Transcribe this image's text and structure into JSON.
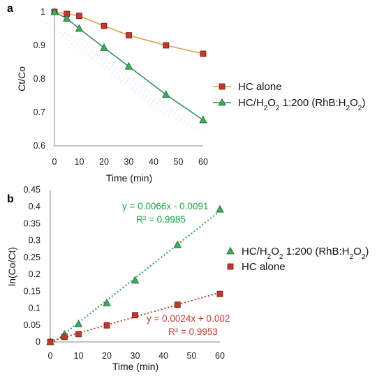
{
  "colors": {
    "hc_line": "#E09A45",
    "hc_marker": "#C0392B",
    "h2o2_line": "#2E8B57",
    "h2o2_marker": "#3AAE5A",
    "fit_green": "#1FA34A",
    "fit_red": "#C0392B",
    "axis": "#888888"
  },
  "chart_data": [
    {
      "panel": "a",
      "type": "line",
      "xlabel": "Time (min)",
      "ylabel": "Ct/Co",
      "xlim": [
        0,
        60
      ],
      "ylim": [
        0.6,
        1
      ],
      "xticks": [
        "0",
        "10",
        "20",
        "30",
        "40",
        "50",
        "60"
      ],
      "yticks": [
        "0.6",
        "0.7",
        "0.8",
        "0.9",
        "1"
      ],
      "legend_position": "right",
      "series": [
        {
          "name": "HC alone",
          "marker": "square",
          "x": [
            0,
            5,
            10,
            20,
            30,
            45,
            60
          ],
          "y": [
            1.0,
            0.994,
            0.988,
            0.958,
            0.93,
            0.9,
            0.875
          ]
        },
        {
          "name_parts": [
            "HC/H",
            "2",
            "O",
            "2",
            " 1:200 (RhB:H",
            "2",
            "O",
            "2",
            ")"
          ],
          "marker": "triangle",
          "x": [
            0,
            5,
            10,
            20,
            30,
            45,
            60
          ],
          "y": [
            1.0,
            0.98,
            0.95,
            0.893,
            0.837,
            0.753,
            0.677
          ]
        }
      ]
    },
    {
      "panel": "b",
      "type": "scatter",
      "xlabel": "Time (min)",
      "ylabel": "ln(Co/Ct)",
      "xlim": [
        0,
        60
      ],
      "ylim": [
        0,
        0.45
      ],
      "xticks": [
        "0",
        "10",
        "20",
        "30",
        "40",
        "50",
        "60"
      ],
      "yticks": [
        "0",
        "0.05",
        "0.1",
        "0.15",
        "0.2",
        "0.25",
        "0.3",
        "0.35",
        "0.4",
        "0.45"
      ],
      "legend_position": "right",
      "series": [
        {
          "name_parts": [
            "HC/H",
            "2",
            "O",
            "2",
            " 1:200 (RhB:H",
            "2",
            "O",
            "2",
            ")"
          ],
          "marker": "triangle",
          "x": [
            0,
            5,
            10,
            20,
            30,
            45,
            60
          ],
          "y": [
            0,
            0.022,
            0.053,
            0.115,
            0.182,
            0.287,
            0.392
          ],
          "fit": {
            "slope": 0.0066,
            "intercept": -0.0091,
            "equation": "y = 0.0066x - 0.0091",
            "r2": "R² = 0.9985"
          }
        },
        {
          "name": "HC alone",
          "marker": "square",
          "x": [
            0,
            5,
            10,
            20,
            30,
            45,
            60
          ],
          "y": [
            0,
            0.015,
            0.023,
            0.049,
            0.079,
            0.11,
            0.142
          ],
          "fit": {
            "slope": 0.0024,
            "intercept": 0.002,
            "equation": "y = 0.0024x + 0.002",
            "r2": "R² = 0.9953"
          }
        }
      ]
    }
  ]
}
